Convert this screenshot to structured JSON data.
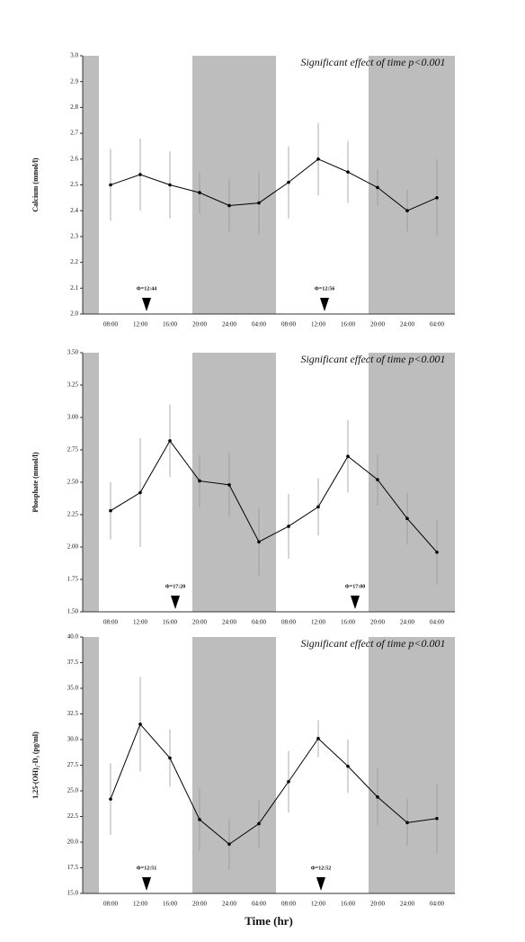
{
  "chart_data": [
    {
      "type": "line",
      "y_label": "Calcium (mmol/l)",
      "annotation": "Significant effect of time p<0.001",
      "categories": [
        "08:00",
        "12:00",
        "16:00",
        "20:00",
        "24:00",
        "04:00",
        "08:00",
        "12:00",
        "16:00",
        "20:00",
        "24:00",
        "04:00"
      ],
      "series": [
        {
          "color": "#000000",
          "values": [
            2.5,
            2.54,
            2.5,
            2.47,
            2.42,
            2.43,
            2.51,
            2.6,
            2.55,
            2.49,
            2.4,
            2.45
          ],
          "errors": [
            0.14,
            0.14,
            0.13,
            0.08,
            0.1,
            0.12,
            0.14,
            0.14,
            0.12,
            0.07,
            0.08,
            0.15
          ]
        }
      ],
      "ylim": [
        2.0,
        3.0
      ],
      "yticks": [
        {
          "value": 2.0,
          "label": "2.0"
        },
        2.1,
        2.2,
        2.3,
        2.4,
        2.5,
        2.6,
        2.7,
        2.8,
        2.9,
        {
          "value": 3.0,
          "label": "3.0"
        }
      ],
      "phase_labels": [
        "Φ=12:44",
        "Φ=12:56"
      ]
    },
    {
      "type": "line",
      "y_label": "Phosphate (mmol/l)",
      "annotation": "Significant effect of time p<0.001",
      "categories": [
        "08:00",
        "12:00",
        "16:00",
        "20:00",
        "24:00",
        "04:00",
        "08:00",
        "12:00",
        "16:00",
        "20:00",
        "24:00",
        "04:00"
      ],
      "series": [
        {
          "color": "#000000",
          "values": [
            2.28,
            2.42,
            2.82,
            2.51,
            2.48,
            2.04,
            2.16,
            2.31,
            2.7,
            2.52,
            2.22,
            1.96
          ],
          "errors": [
            0.22,
            0.42,
            0.28,
            0.2,
            0.25,
            0.26,
            0.25,
            0.22,
            0.28,
            0.2,
            0.2,
            0.25
          ]
        }
      ],
      "ylim": [
        1.5,
        3.5
      ],
      "yticks": [
        {
          "value": 1.5,
          "label": "1.50"
        },
        1.75,
        {
          "value": 2.0,
          "label": "2.00"
        },
        2.25,
        {
          "value": 2.5,
          "label": "2.50"
        },
        2.75,
        {
          "value": 3.0,
          "label": "3.00"
        },
        3.25,
        {
          "value": 3.5,
          "label": "3.50"
        }
      ],
      "phase_labels": [
        "Φ=17:20",
        "Φ=17:00"
      ]
    },
    {
      "type": "line",
      "y_label": "1,25-(OH)₂-D₃ (pg/ml)",
      "annotation": "Significant effect of time p<0.001",
      "categories": [
        "08:00",
        "12:00",
        "16:00",
        "20:00",
        "24:00",
        "04:00",
        "08:00",
        "12:00",
        "16:00",
        "20:00",
        "24:00",
        "04:00"
      ],
      "series": [
        {
          "color": "#000000",
          "values": [
            24.2,
            31.5,
            28.2,
            22.2,
            19.8,
            21.8,
            25.9,
            30.1,
            27.4,
            24.4,
            21.9,
            22.3
          ],
          "errors": [
            3.5,
            4.6,
            2.8,
            3.0,
            2.5,
            2.3,
            3.0,
            1.8,
            2.6,
            2.8,
            2.3,
            3.4
          ]
        }
      ],
      "ylim": [
        15,
        40
      ],
      "yticks": [
        {
          "value": 15,
          "label": "15.0"
        },
        17.5,
        {
          "value": 20,
          "label": "20.0"
        },
        22.5,
        {
          "value": 25,
          "label": "25.0"
        },
        27.5,
        {
          "value": 30,
          "label": "30.0"
        },
        32.5,
        {
          "value": 35,
          "label": "35.0"
        },
        37.5,
        {
          "value": 40,
          "label": "40.0"
        }
      ],
      "phase_labels": [
        "Φ=12:51",
        "Φ=12:52"
      ],
      "x_label": "Time (hr)"
    }
  ]
}
